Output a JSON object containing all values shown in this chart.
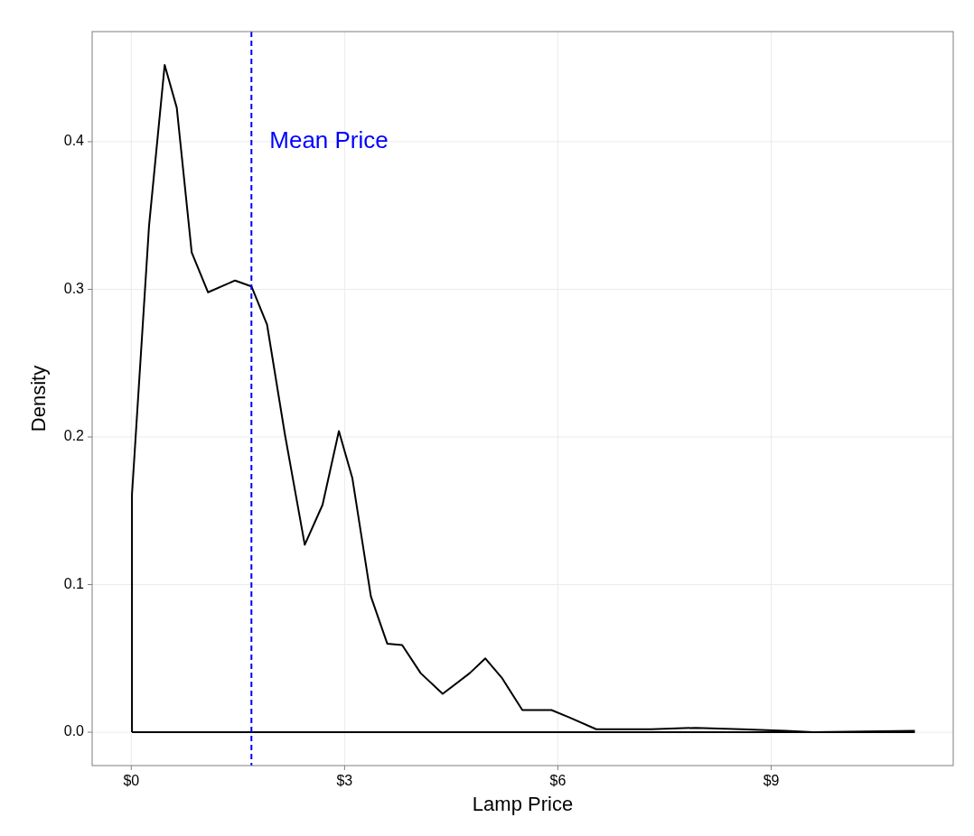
{
  "chart_data": {
    "type": "line",
    "xlabel": "Lamp Price",
    "ylabel": "Density",
    "x": [
      0.01,
      0.01,
      0.25,
      0.47,
      0.64,
      0.85,
      1.08,
      1.46,
      1.69,
      1.91,
      2.16,
      2.44,
      2.69,
      2.92,
      3.11,
      3.37,
      3.6,
      3.81,
      4.07,
      4.38,
      4.76,
      4.98,
      5.21,
      5.5,
      5.91,
      6.16,
      6.54,
      7.31,
      7.94,
      8.58,
      9.21,
      9.59,
      11.02
    ],
    "series": [
      {
        "color": "#000000",
        "values": [
          0,
          0.161,
          0.343,
          0.452,
          0.423,
          0.325,
          0.298,
          0.306,
          0.302,
          0.276,
          0.202,
          0.127,
          0.154,
          0.204,
          0.172,
          0.092,
          0.06,
          0.059,
          0.04,
          0.026,
          0.04,
          0.05,
          0.037,
          0.015,
          0.015,
          0.01,
          0.002,
          0.002,
          0.003,
          0.002,
          0.001,
          0,
          0.001
        ]
      },
      {
        "color": "#000000",
        "x": [
          0.01,
          11.02
        ],
        "values": [
          0,
          0
        ]
      }
    ],
    "xlim": [
      -0.55,
      11.56
    ],
    "ylim": [
      -0.0226,
      0.4746
    ],
    "xticks": [
      {
        "value": 0,
        "label": "$0"
      },
      {
        "value": 3,
        "label": "$3"
      },
      {
        "value": 6,
        "label": "$6"
      },
      {
        "value": 9,
        "label": "$9"
      }
    ],
    "yticks": [
      {
        "value": 0,
        "label": "0.0"
      },
      {
        "value": 0.1,
        "label": "0.1"
      },
      {
        "value": 0.2,
        "label": "0.2"
      },
      {
        "value": 0.3,
        "label": "0.3"
      },
      {
        "value": 0.4,
        "label": "0.4"
      }
    ],
    "grid": true,
    "ref_lines": [
      {
        "axis": "x",
        "value": 1.69,
        "label": "Mean Price",
        "color": "#0000ff",
        "line_style": "dashed"
      }
    ]
  }
}
